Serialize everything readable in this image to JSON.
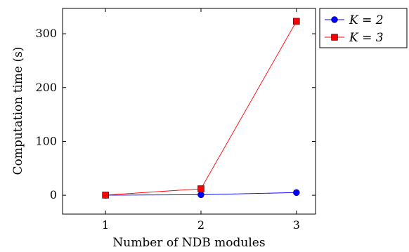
{
  "chart_data": {
    "type": "line",
    "title": "",
    "xlabel": "Number of NDB modules",
    "ylabel": "Computation time (s)",
    "x": [
      1,
      2,
      3
    ],
    "x_ticks": [
      "1",
      "2",
      "3"
    ],
    "y_ticks": [
      "0",
      "100",
      "200",
      "300"
    ],
    "y_tick_values": [
      0,
      100,
      200,
      300
    ],
    "xlim": [
      0.55,
      3.2
    ],
    "ylim": [
      -35,
      347
    ],
    "grid": false,
    "legend_placement": "outside-top-right",
    "series": [
      {
        "name": "K = 2",
        "values": [
          0.1,
          1,
          5
        ],
        "color": "#0000ff",
        "marker": "circle"
      },
      {
        "name": "K = 3",
        "values": [
          0.3,
          12,
          323
        ],
        "color": "#ff0000",
        "marker": "square"
      }
    ]
  }
}
